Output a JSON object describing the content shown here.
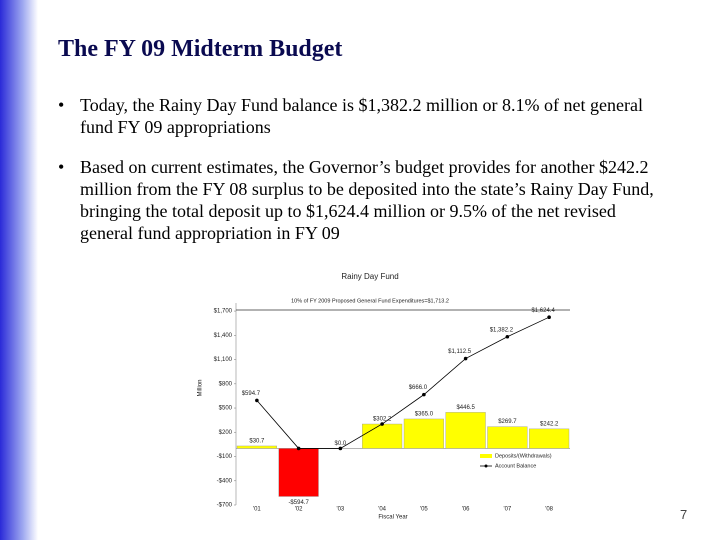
{
  "slide": {
    "title": "The FY 09 Midterm Budget",
    "bullets": [
      "Today, the Rainy Day Fund balance is $1,382.2 million or 8.1% of net general fund FY 09 appropriations",
      "Based on current estimates, the Governor’s budget provides for another $242.2 million from the FY 08 surplus to be deposited into the state’s Rainy Day Fund, bringing the total deposit up to $1,624.4 million or 9.5% of the net revised general fund appropriation in FY 09"
    ],
    "page_number": "7"
  },
  "chart_data": {
    "type": "bar-line",
    "title": "Rainy Day Fund",
    "reference": {
      "label": "10% of FY 2009 Proposed General Fund Expenditures=$1,713.2",
      "value": 1713.2
    },
    "xlabel": "Fiscal Year",
    "ylabel": "Million",
    "categories": [
      "'01",
      "'02",
      "'03",
      "'04",
      "'05",
      "'06",
      "'07",
      "'08"
    ],
    "series": [
      {
        "name": "Deposits/(Withdrawals)",
        "type": "bar",
        "color": "#ffff00",
        "colors": [
          "#ffff00",
          "#ff0000",
          "#ffff00",
          "#ffff00",
          "#ffff00",
          "#ffff00",
          "#ffff00",
          "#ffff00"
        ],
        "values": [
          30.7,
          -594.7,
          0.0,
          302.2,
          365.0,
          446.5,
          269.7,
          242.2
        ],
        "value_labels": [
          "$30.7",
          "-$594.7",
          "$0.0",
          "$302.2",
          "$365.0",
          "$446.5",
          "$269.7",
          "$242.2"
        ]
      },
      {
        "name": "Account Balance",
        "type": "line",
        "color": "#000000",
        "values": [
          594.7,
          0.0,
          0.0,
          302.2,
          666.0,
          1112.5,
          1382.2,
          1624.4
        ],
        "value_labels": [
          "$594.7",
          null,
          null,
          null,
          "$666.0",
          "$1,112.5",
          "$1,382.2",
          "$1,624.4"
        ]
      }
    ],
    "ylim": [
      -700,
      1800
    ],
    "yticks": [
      {
        "value": 1700,
        "label": "$1,700"
      },
      {
        "value": 1400,
        "label": "$1,400"
      },
      {
        "value": 1100,
        "label": "$1,100"
      },
      {
        "value": 800,
        "label": "$800"
      },
      {
        "value": 500,
        "label": "$500"
      },
      {
        "value": 200,
        "label": "$200"
      },
      {
        "value": -100,
        "label": "-$100"
      },
      {
        "value": -400,
        "label": "-$400"
      },
      {
        "value": -700,
        "label": "-$700"
      }
    ],
    "legend": "lower right"
  }
}
